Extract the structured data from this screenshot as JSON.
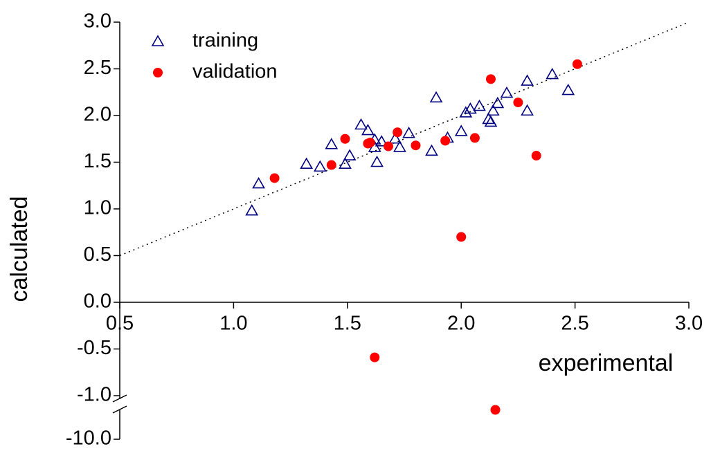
{
  "chart_data": {
    "type": "scatter",
    "xlabel": "experimental",
    "ylabel": "calculated",
    "xlim": [
      0.5,
      3.0
    ],
    "ylim": [
      -10.0,
      3.0
    ],
    "ybreak": [
      -9.0,
      -1.0
    ],
    "xticks": [
      {
        "value": 0.5,
        "label": "0.5"
      },
      {
        "value": 1.0,
        "label": "1.0"
      },
      {
        "value": 1.5,
        "label": "1.5"
      },
      {
        "value": 2.0,
        "label": "2.0"
      },
      {
        "value": 2.5,
        "label": "2.5"
      },
      {
        "value": 3.0,
        "label": "3.0"
      }
    ],
    "yticks": [
      {
        "value": 3.0,
        "label": "3.0"
      },
      {
        "value": 2.5,
        "label": "2.5"
      },
      {
        "value": 2.0,
        "label": "2.0"
      },
      {
        "value": 1.5,
        "label": "1.5"
      },
      {
        "value": 1.0,
        "label": "1.0"
      },
      {
        "value": 0.5,
        "label": "0.5"
      },
      {
        "value": 0.0,
        "label": "0.0"
      },
      {
        "value": -0.5,
        "label": "-0.5"
      },
      {
        "value": -1.0,
        "label": "-1.0"
      },
      {
        "value": -10.0,
        "label": "-10.0"
      }
    ],
    "diagonal": true,
    "series": [
      {
        "name": "training",
        "marker": "triangle",
        "color": "#000080",
        "x": [
          1.08,
          1.11,
          1.32,
          1.38,
          1.43,
          1.49,
          1.51,
          1.56,
          1.59,
          1.62,
          1.62,
          1.63,
          1.65,
          1.73,
          1.71,
          1.77,
          1.87,
          1.89,
          1.94,
          2.0,
          2.02,
          2.04,
          2.08,
          2.12,
          2.13,
          2.14,
          2.16,
          2.2,
          2.29,
          2.29,
          2.4,
          2.47
        ],
        "values": [
          0.98,
          1.27,
          1.48,
          1.45,
          1.69,
          1.48,
          1.57,
          1.9,
          1.84,
          1.66,
          1.74,
          1.5,
          1.72,
          1.66,
          1.75,
          1.81,
          1.62,
          2.19,
          1.76,
          1.83,
          2.03,
          2.07,
          2.1,
          1.96,
          1.93,
          2.05,
          2.13,
          2.24,
          2.05,
          2.37,
          2.44,
          2.27
        ]
      },
      {
        "name": "validation",
        "marker": "circle",
        "color": "#ff0000",
        "x": [
          1.18,
          1.43,
          1.49,
          1.59,
          1.6,
          1.68,
          1.72,
          1.8,
          1.93,
          2.06,
          2.13,
          2.25,
          2.33,
          2.51,
          2.0,
          1.62,
          2.15
        ],
        "values": [
          1.33,
          1.47,
          1.75,
          1.7,
          1.71,
          1.67,
          1.82,
          1.68,
          1.73,
          1.76,
          2.39,
          2.14,
          1.57,
          2.55,
          0.7,
          -0.59,
          -9.15
        ]
      }
    ]
  }
}
